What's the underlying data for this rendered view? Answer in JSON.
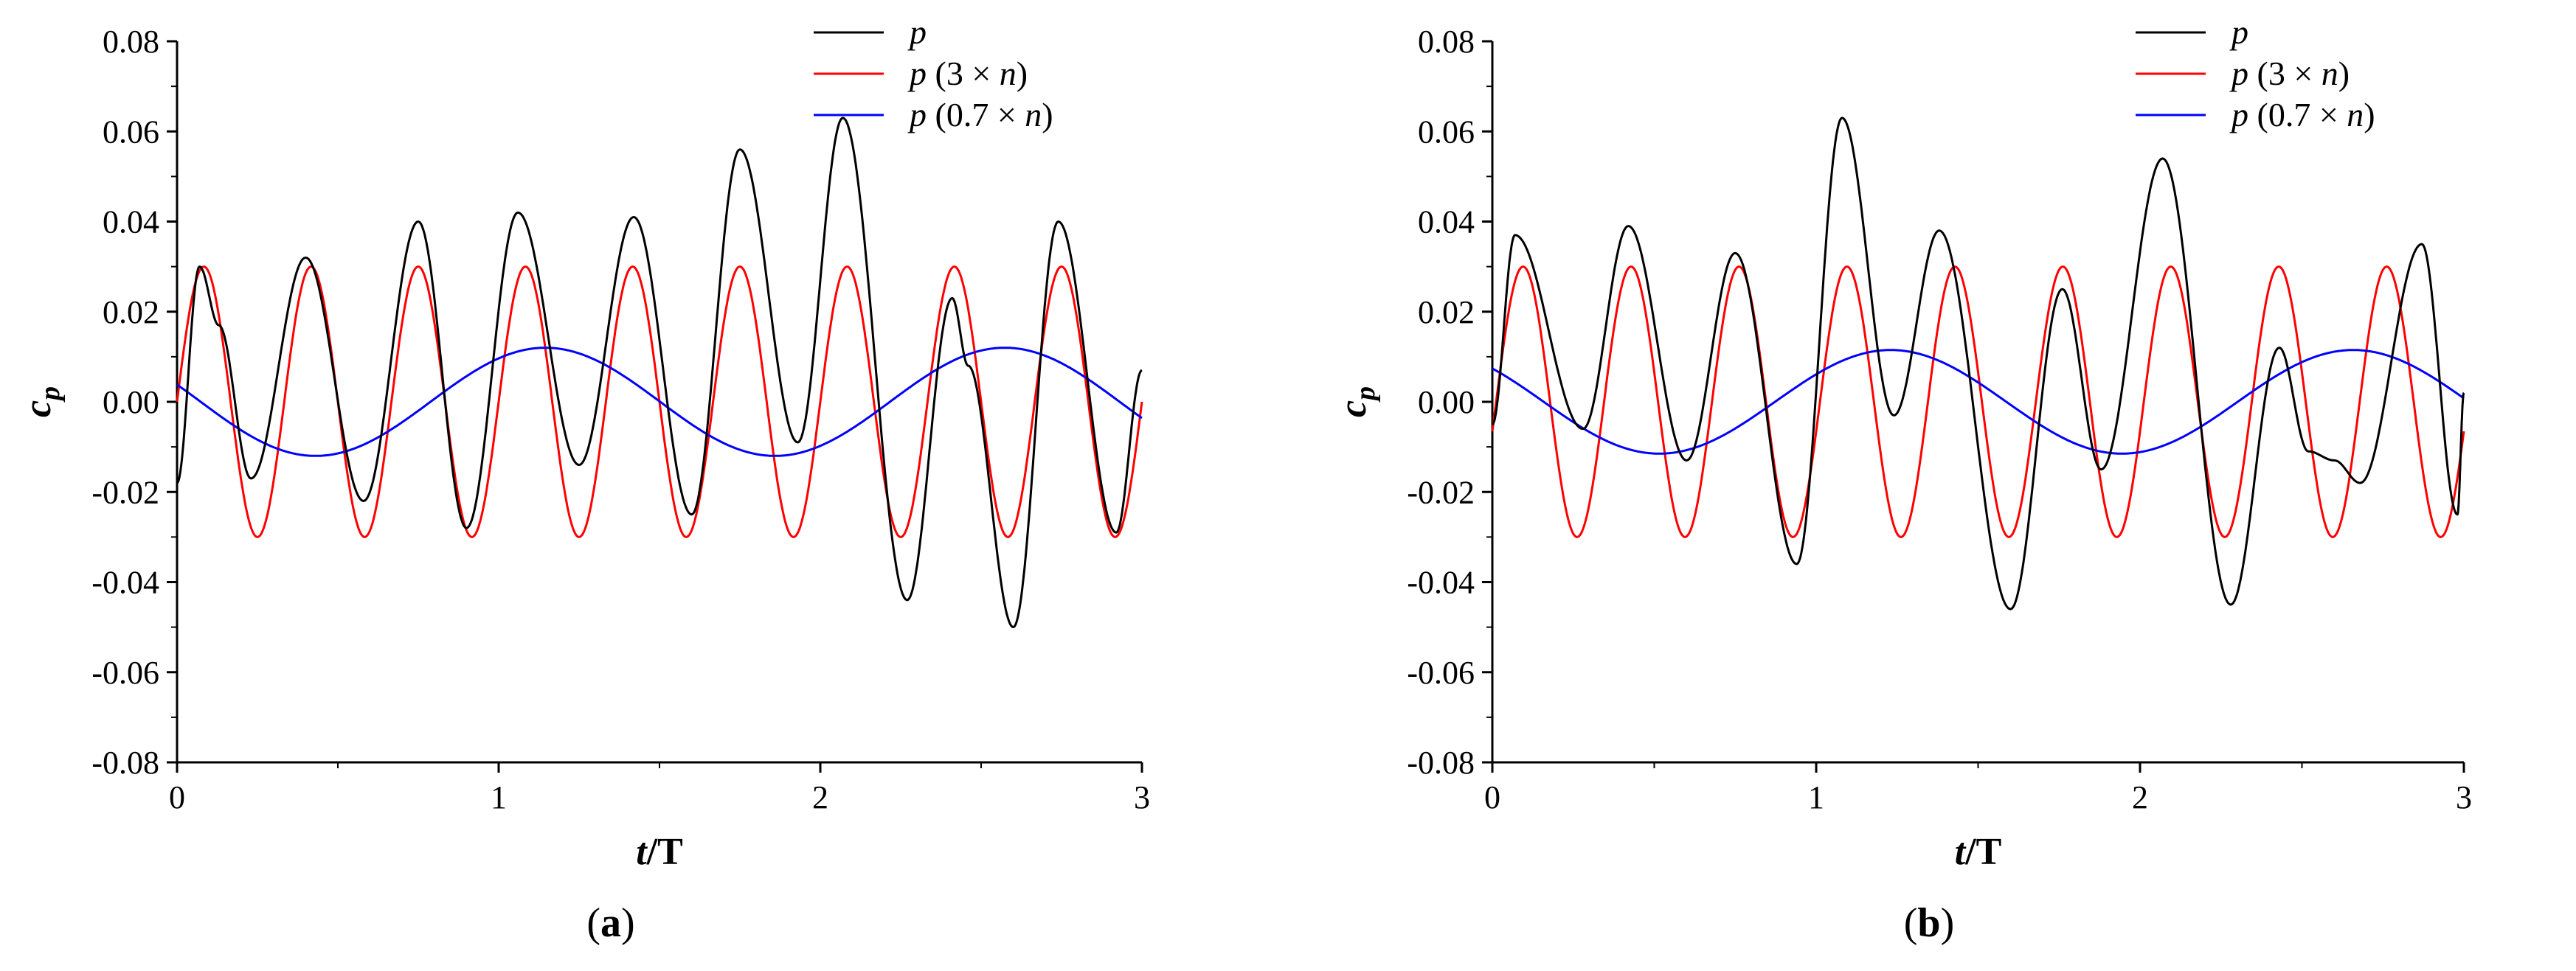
{
  "chart_data": [
    {
      "type": "line",
      "panel_label": "(a)",
      "panel_letter": "a",
      "xlabel": "t/T",
      "ylabel": "cp",
      "xlim": [
        0,
        3
      ],
      "ylim": [
        -0.08,
        0.08
      ],
      "x_ticks": [
        0,
        1,
        2,
        3
      ],
      "y_ticks": [
        -0.08,
        -0.06,
        -0.04,
        -0.02,
        0.0,
        0.02,
        0.04,
        0.06,
        0.08
      ],
      "x_tick_labels": [
        "0",
        "1",
        "2",
        "3"
      ],
      "y_tick_labels": [
        "-0.08",
        "-0.06",
        "-0.04",
        "-0.02",
        "0.00",
        "0.02",
        "0.04",
        "0.06",
        "0.08"
      ],
      "legend_position": "top-right",
      "grid": false,
      "series": [
        {
          "name": "p",
          "legend_parts": [
            "p",
            ""
          ],
          "color": "#000000",
          "x": [
            0.0,
            0.07,
            0.13,
            0.23,
            0.4,
            0.58,
            0.75,
            0.9,
            1.06,
            1.25,
            1.42,
            1.6,
            1.75,
            1.93,
            2.07,
            2.27,
            2.41,
            2.46,
            2.6,
            2.74,
            2.92,
            3.0
          ],
          "y": [
            -0.018,
            0.03,
            0.017,
            -0.017,
            0.032,
            -0.022,
            0.04,
            -0.028,
            0.042,
            -0.014,
            0.041,
            -0.025,
            0.056,
            -0.009,
            0.063,
            -0.044,
            0.023,
            0.008,
            -0.05,
            0.04,
            -0.029,
            0.007
          ]
        },
        {
          "name": "p (3 × n)",
          "legend_parts": [
            "p",
            " (3 × n)"
          ],
          "color": "#ff0000",
          "wave": {
            "amplitude": 0.03,
            "cycles_per_unit": 3,
            "phase_t": 0.0833
          },
          "x": [
            0.0,
            0.083,
            0.25,
            0.417,
            0.583,
            0.75,
            0.917,
            1.083,
            1.25,
            1.417,
            1.583,
            1.75,
            1.917,
            2.083,
            2.25,
            2.417,
            2.583,
            2.75,
            2.917,
            3.0
          ],
          "y": [
            0.0,
            0.03,
            -0.03,
            0.03,
            -0.03,
            0.03,
            -0.03,
            0.03,
            -0.03,
            0.03,
            -0.03,
            0.03,
            -0.03,
            0.03,
            -0.03,
            0.03,
            -0.03,
            0.03,
            -0.03,
            0.0
          ]
        },
        {
          "name": "p (0.7 × n)",
          "legend_parts": [
            "p",
            " (0.7 × n)"
          ],
          "color": "#0000ff",
          "wave": {
            "amplitude": 0.012,
            "cycles_per_unit": 0.7,
            "phase_t": 1.145
          },
          "x": [
            0.0,
            0.43,
            1.145,
            1.86,
            2.57,
            3.0
          ],
          "y": [
            0.003,
            -0.012,
            0.012,
            -0.012,
            0.012,
            -0.003
          ]
        }
      ]
    },
    {
      "type": "line",
      "panel_label": "(b)",
      "panel_letter": "b",
      "xlabel": "t/T",
      "ylabel": "cp",
      "xlim": [
        0,
        3
      ],
      "ylim": [
        -0.08,
        0.08
      ],
      "x_ticks": [
        0,
        1,
        2,
        3
      ],
      "y_ticks": [
        -0.08,
        -0.06,
        -0.04,
        -0.02,
        0.0,
        0.02,
        0.04,
        0.06,
        0.08
      ],
      "x_tick_labels": [
        "0",
        "1",
        "2",
        "3"
      ],
      "y_tick_labels": [
        "-0.08",
        "-0.06",
        "-0.04",
        "-0.02",
        "0.00",
        "0.02",
        "0.04",
        "0.06",
        "0.08"
      ],
      "legend_position": "top-right",
      "grid": false,
      "series": [
        {
          "name": "p",
          "legend_parts": [
            "p",
            ""
          ],
          "color": "#000000",
          "x": [
            0.0,
            0.07,
            0.28,
            0.42,
            0.6,
            0.75,
            0.94,
            1.08,
            1.24,
            1.38,
            1.6,
            1.76,
            1.88,
            2.07,
            2.28,
            2.43,
            2.52,
            2.6,
            2.68,
            2.87,
            2.98,
            3.0
          ],
          "y": [
            -0.005,
            0.037,
            -0.006,
            0.039,
            -0.013,
            0.033,
            -0.036,
            0.063,
            -0.003,
            0.038,
            -0.046,
            0.025,
            -0.015,
            0.054,
            -0.045,
            0.012,
            -0.011,
            -0.013,
            -0.018,
            0.035,
            -0.025,
            0.002
          ]
        },
        {
          "name": "p (3 × n)",
          "legend_parts": [
            "p",
            " (3 × n)"
          ],
          "color": "#ff0000",
          "wave": {
            "amplitude": 0.03,
            "cycles_per_unit": 3,
            "phase_t": 0.095
          },
          "x": [
            0.0,
            0.095,
            0.262,
            0.428,
            0.595,
            0.762,
            0.928,
            1.095,
            1.262,
            1.428,
            1.595,
            1.762,
            1.928,
            2.095,
            2.262,
            2.428,
            2.595,
            2.762,
            2.928,
            3.0
          ],
          "y": [
            -0.004,
            0.03,
            -0.03,
            0.03,
            -0.03,
            0.03,
            -0.03,
            0.03,
            -0.03,
            0.03,
            -0.03,
            0.03,
            -0.03,
            0.03,
            -0.03,
            0.03,
            -0.03,
            0.03,
            -0.03,
            -0.008
          ]
        },
        {
          "name": "p (0.7 × n)",
          "legend_parts": [
            "p",
            " (0.7 × n)"
          ],
          "color": "#0000ff",
          "wave": {
            "amplitude": 0.0115,
            "cycles_per_unit": 0.7,
            "phase_t": 1.23
          },
          "x": [
            0.0,
            0.516,
            1.23,
            1.944,
            2.659,
            3.0
          ],
          "y": [
            0.007,
            -0.0115,
            0.0115,
            -0.0115,
            0.0115,
            0.001
          ]
        }
      ]
    }
  ]
}
